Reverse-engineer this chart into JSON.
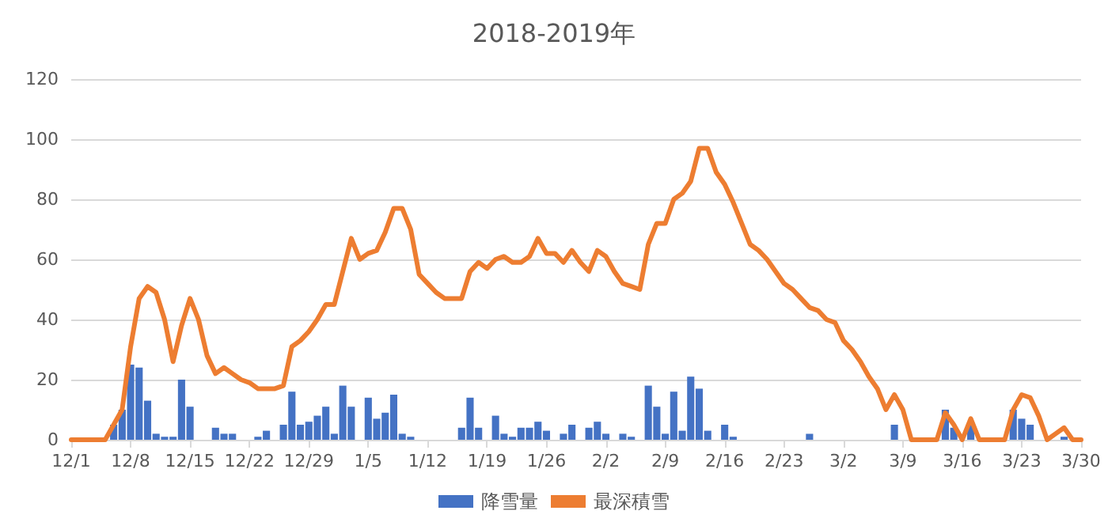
{
  "chart_data": {
    "type": "bar",
    "title": "2018-2019年",
    "categories": [
      "12/1",
      null,
      null,
      null,
      null,
      null,
      null,
      "12/8",
      null,
      null,
      null,
      null,
      null,
      null,
      "12/15",
      null,
      null,
      null,
      null,
      null,
      null,
      "12/22",
      null,
      null,
      null,
      null,
      null,
      null,
      "12/29",
      null,
      null,
      null,
      null,
      null,
      null,
      "1/5",
      null,
      null,
      null,
      null,
      null,
      null,
      "1/12",
      null,
      null,
      null,
      null,
      null,
      null,
      "1/19",
      null,
      null,
      null,
      null,
      null,
      null,
      "1/26",
      null,
      null,
      null,
      null,
      null,
      null,
      "2/2",
      null,
      null,
      null,
      null,
      null,
      null,
      "2/9",
      null,
      null,
      null,
      null,
      null,
      null,
      "2/16",
      null,
      null,
      null,
      null,
      null,
      null,
      "2/23",
      null,
      null,
      null,
      null,
      null,
      null,
      "3/2",
      null,
      null,
      null,
      null,
      null,
      null,
      "3/9",
      null,
      null,
      null,
      null,
      null,
      null,
      "3/16",
      null,
      null,
      null,
      null,
      null,
      null,
      "3/23",
      null,
      null,
      null,
      null,
      null,
      null,
      "3/30"
    ],
    "series": [
      {
        "name": "降雪量",
        "color": "#4472c4",
        "values": [
          0,
          0,
          0,
          0,
          0,
          5,
          10,
          25,
          24,
          13,
          2,
          1,
          1,
          20,
          11,
          0,
          0,
          4,
          2,
          2,
          0,
          0,
          1,
          3,
          0,
          5,
          16,
          5,
          6,
          8,
          11,
          2,
          18,
          11,
          0,
          14,
          7,
          9,
          15,
          2,
          1,
          0,
          0,
          0,
          0,
          0,
          4,
          14,
          4,
          0,
          8,
          2,
          1,
          4,
          4,
          6,
          3,
          0,
          2,
          5,
          0,
          4,
          6,
          2,
          0,
          2,
          1,
          0,
          18,
          11,
          2,
          16,
          3,
          21,
          17,
          3,
          0,
          5,
          1,
          0,
          0,
          0,
          0,
          0,
          0,
          0,
          0,
          2,
          0,
          0,
          0,
          0,
          0,
          0,
          0,
          0,
          0,
          5,
          0,
          0,
          0,
          0,
          0,
          10,
          4,
          0,
          5,
          0,
          0,
          0,
          0,
          10,
          7,
          5,
          0,
          0,
          0,
          1,
          0,
          0
        ]
      },
      {
        "name": "最深積雪",
        "type": "line",
        "color": "#ed7d31",
        "values": [
          0,
          0,
          0,
          0,
          0,
          5,
          10,
          31,
          47,
          51,
          49,
          40,
          26,
          38,
          47,
          40,
          28,
          22,
          24,
          22,
          20,
          19,
          17,
          17,
          17,
          18,
          31,
          33,
          36,
          40,
          45,
          45,
          56,
          67,
          60,
          62,
          63,
          69,
          77,
          77,
          70,
          55,
          52,
          49,
          47,
          47,
          47,
          56,
          59,
          57,
          60,
          61,
          59,
          59,
          61,
          67,
          62,
          62,
          59,
          63,
          59,
          56,
          63,
          61,
          56,
          52,
          51,
          50,
          65,
          72,
          72,
          80,
          82,
          86,
          97,
          97,
          89,
          85,
          79,
          72,
          65,
          63,
          60,
          56,
          52,
          50,
          47,
          44,
          43,
          40,
          39,
          33,
          30,
          26,
          21,
          17,
          10,
          15,
          10,
          0,
          0,
          0,
          0,
          9,
          5,
          0,
          7,
          0,
          0,
          0,
          0,
          10,
          15,
          14,
          8,
          0,
          2,
          4,
          0,
          0
        ]
      }
    ],
    "ylim": [
      0,
      120
    ],
    "yticks": [
      0,
      20,
      40,
      60,
      80,
      100,
      120
    ],
    "grid": "y",
    "legend": "bottom",
    "marker": "none",
    "line_style": "solid"
  }
}
